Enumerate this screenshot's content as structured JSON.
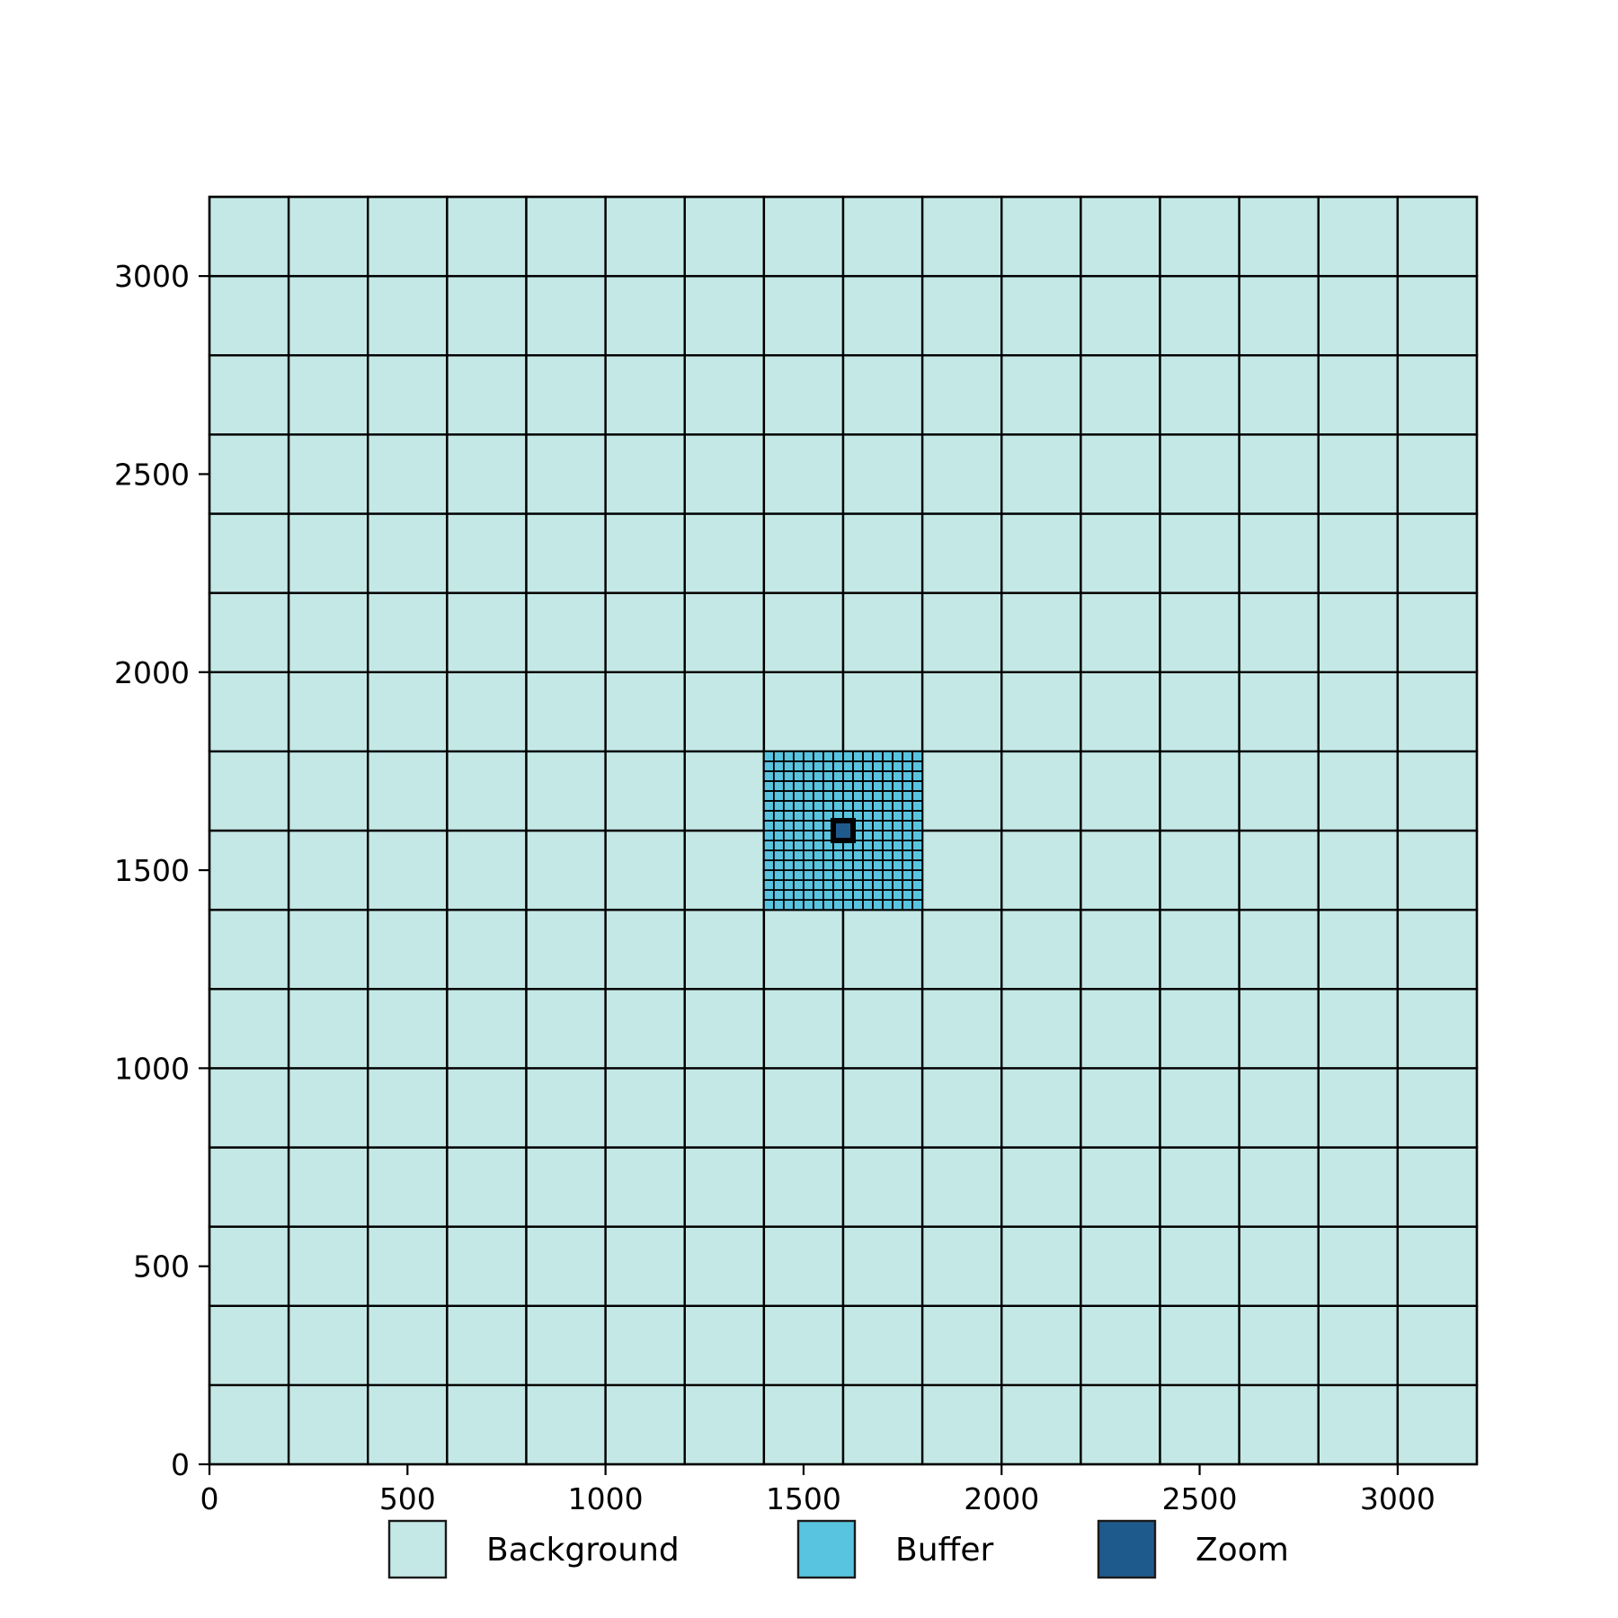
{
  "chart_data": {
    "type": "grid-cells",
    "title": "",
    "xlabel": "",
    "ylabel": "",
    "xlim": [
      0,
      3200
    ],
    "ylim": [
      0,
      3200
    ],
    "x_ticks": [
      0,
      500,
      1000,
      1500,
      2000,
      2500,
      3000
    ],
    "y_ticks": [
      0,
      500,
      1000,
      1500,
      2000,
      2500,
      3000
    ],
    "x_tick_labels": [
      "0",
      "500",
      "1000",
      "1500",
      "2000",
      "2500",
      "3000"
    ],
    "y_tick_labels": [
      "0",
      "500",
      "1000",
      "1500",
      "2000",
      "2500",
      "3000"
    ],
    "grid": false,
    "legend_placement": "bottom-center",
    "regions": {
      "background": {
        "label": "Background",
        "color": "#c4e8e6",
        "extent": [
          0,
          3200,
          0,
          3200
        ],
        "cell_size": 200
      },
      "buffer": {
        "label": "Buffer",
        "color": "#58c4e0",
        "extent": [
          1400,
          1800,
          1400,
          1800
        ],
        "cell_size": 25
      },
      "zoom": {
        "label": "Zoom",
        "color": "#1f5a8c",
        "extent": [
          1575,
          1625,
          1575,
          1625
        ],
        "cell_size": 50
      }
    },
    "legend": [
      {
        "label": "Background",
        "color": "#c4e8e6"
      },
      {
        "label": "Buffer",
        "color": "#58c4e0"
      },
      {
        "label": "Zoom",
        "color": "#1f5a8c"
      }
    ]
  }
}
